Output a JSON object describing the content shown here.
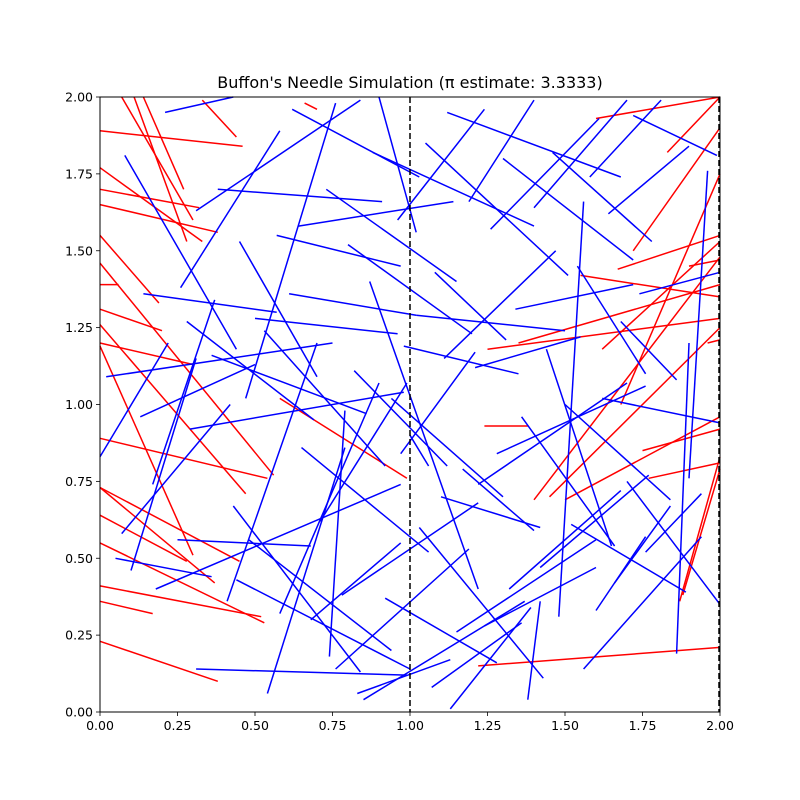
{
  "chart_data": {
    "type": "line",
    "title": "Buffon's Needle Simulation (π estimate: 3.3333)",
    "xlabel": "",
    "ylabel": "",
    "xlim": [
      0,
      2
    ],
    "ylim": [
      0,
      2
    ],
    "grid": false,
    "x_ticks": [
      "0.00",
      "0.25",
      "0.50",
      "0.75",
      "1.00",
      "1.25",
      "1.50",
      "1.75",
      "2.00"
    ],
    "y_ticks": [
      "0.00",
      "0.25",
      "0.50",
      "0.75",
      "1.00",
      "1.25",
      "1.50",
      "1.75",
      "2.00"
    ],
    "floor_lines": [
      1.0,
      2.0
    ],
    "colors": {
      "crossing": "#ff0000",
      "non_crossing": "#0000ff",
      "floor_line": "#000000"
    },
    "series": [
      {
        "color": "#ff0000",
        "segments": [
          [
            0.0,
            0.23,
            0.38,
            0.1
          ],
          [
            0.0,
            0.36,
            0.17,
            0.32
          ],
          [
            0.0,
            0.41,
            0.52,
            0.31
          ],
          [
            0.0,
            0.55,
            0.53,
            0.29
          ],
          [
            0.0,
            0.64,
            0.28,
            0.49
          ],
          [
            0.0,
            0.73,
            0.37,
            0.42
          ],
          [
            0.0,
            0.73,
            0.45,
            0.49
          ],
          [
            0.0,
            0.89,
            0.54,
            0.76
          ],
          [
            0.0,
            1.19,
            0.3,
            0.51
          ],
          [
            0.0,
            1.2,
            0.3,
            1.13
          ],
          [
            0.0,
            1.26,
            0.47,
            0.71
          ],
          [
            0.0,
            1.31,
            0.2,
            1.24
          ],
          [
            0.0,
            1.39,
            0.06,
            1.39
          ],
          [
            0.0,
            1.46,
            0.56,
            0.77
          ],
          [
            0.0,
            1.55,
            0.19,
            1.33
          ],
          [
            0.0,
            1.65,
            0.38,
            1.56
          ],
          [
            0.0,
            1.7,
            0.32,
            1.64
          ],
          [
            0.0,
            1.77,
            0.33,
            1.53
          ],
          [
            0.0,
            1.89,
            0.46,
            1.84
          ],
          [
            0.07,
            2.0,
            0.3,
            1.6
          ],
          [
            0.11,
            2.0,
            0.28,
            1.53
          ],
          [
            0.14,
            2.0,
            0.27,
            1.7
          ],
          [
            0.33,
            1.99,
            0.44,
            1.87
          ],
          [
            0.66,
            1.98,
            0.7,
            1.96
          ],
          [
            0.58,
            1.02,
            0.99,
            0.76
          ],
          [
            1.24,
            0.93,
            1.38,
            0.93
          ],
          [
            1.22,
            0.15,
            2.0,
            0.21
          ],
          [
            1.25,
            1.18,
            2.0,
            1.28
          ],
          [
            1.35,
            1.2,
            2.0,
            1.39
          ],
          [
            1.4,
            0.69,
            2.0,
            1.48
          ],
          [
            1.45,
            0.7,
            2.0,
            1.25
          ],
          [
            1.5,
            0.69,
            2.0,
            0.96
          ],
          [
            1.6,
            1.93,
            2.0,
            2.0
          ],
          [
            1.62,
            1.18,
            2.0,
            1.53
          ],
          [
            1.67,
            1.44,
            2.0,
            1.55
          ],
          [
            1.68,
            1.0,
            2.0,
            1.75
          ],
          [
            1.72,
            1.5,
            2.0,
            1.9
          ],
          [
            1.75,
            0.85,
            2.0,
            0.92
          ],
          [
            1.77,
            0.76,
            2.0,
            0.81
          ],
          [
            1.83,
            1.82,
            2.0,
            2.0
          ],
          [
            1.87,
            0.36,
            2.0,
            0.83
          ],
          [
            1.88,
            0.38,
            2.0,
            0.79
          ],
          [
            1.9,
            1.45,
            2.0,
            1.47
          ],
          [
            1.96,
            1.2,
            2.0,
            1.21
          ],
          [
            1.55,
            1.42,
            2.0,
            1.35
          ]
        ]
      },
      {
        "color": "#0000ff",
        "segments": [
          [
            0.0,
            0.83,
            0.22,
            1.2
          ],
          [
            0.02,
            1.09,
            0.75,
            1.2
          ],
          [
            0.05,
            0.5,
            0.36,
            0.44
          ],
          [
            0.07,
            0.58,
            0.42,
            1.0
          ],
          [
            0.08,
            1.81,
            0.44,
            1.18
          ],
          [
            0.1,
            0.46,
            0.31,
            1.15
          ],
          [
            0.13,
            0.96,
            0.5,
            1.13
          ],
          [
            0.14,
            1.36,
            0.57,
            1.3
          ],
          [
            0.17,
            0.74,
            0.37,
            1.34
          ],
          [
            0.18,
            0.4,
            0.97,
            0.74
          ],
          [
            0.21,
            1.95,
            0.43,
            2.0
          ],
          [
            0.25,
            0.56,
            0.68,
            0.54
          ],
          [
            0.26,
            1.38,
            0.58,
            1.89
          ],
          [
            0.28,
            1.27,
            0.69,
            0.95
          ],
          [
            0.29,
            0.92,
            0.98,
            1.04
          ],
          [
            0.31,
            0.14,
            0.99,
            0.12
          ],
          [
            0.31,
            1.63,
            0.84,
            1.99
          ],
          [
            0.36,
            1.16,
            0.86,
            0.97
          ],
          [
            0.38,
            1.7,
            0.91,
            1.66
          ],
          [
            0.41,
            0.36,
            0.7,
            1.2
          ],
          [
            0.43,
            0.67,
            0.84,
            0.13
          ],
          [
            0.44,
            0.43,
            1.0,
            0.14
          ],
          [
            0.45,
            1.53,
            0.7,
            1.09
          ],
          [
            0.47,
            1.02,
            0.76,
            1.98
          ],
          [
            0.48,
            0.56,
            0.94,
            0.2
          ],
          [
            0.5,
            1.28,
            0.96,
            1.23
          ],
          [
            0.53,
            1.24,
            0.92,
            0.8
          ],
          [
            0.54,
            0.06,
            0.79,
            0.86
          ],
          [
            0.57,
            1.55,
            0.97,
            1.45
          ],
          [
            0.58,
            0.32,
            0.9,
            1.07
          ],
          [
            0.61,
            1.36,
            1.02,
            1.29
          ],
          [
            0.62,
            1.96,
            1.03,
            1.74
          ],
          [
            0.64,
            1.58,
            1.14,
            1.66
          ],
          [
            0.65,
            0.86,
            1.06,
            0.52
          ],
          [
            0.68,
            0.3,
            0.97,
            0.55
          ],
          [
            0.71,
            0.62,
            0.99,
            1.07
          ],
          [
            0.73,
            1.7,
            1.15,
            1.4
          ],
          [
            0.74,
            0.18,
            0.79,
            0.98
          ],
          [
            0.76,
            0.14,
            1.19,
            0.53
          ],
          [
            0.78,
            0.38,
            1.22,
            0.68
          ],
          [
            0.8,
            1.52,
            1.2,
            1.23
          ],
          [
            0.82,
            1.11,
            1.12,
            0.8
          ],
          [
            0.83,
            0.06,
            1.13,
            0.17
          ],
          [
            0.85,
            0.04,
            1.37,
            0.36
          ],
          [
            0.87,
            1.4,
            1.22,
            0.4
          ],
          [
            0.88,
            1.82,
            1.4,
            1.58
          ],
          [
            0.9,
            2.0,
            1.02,
            1.56
          ],
          [
            0.92,
            0.37,
            1.28,
            0.16
          ],
          [
            0.94,
            1.02,
            1.3,
            0.7
          ],
          [
            0.96,
            1.6,
            1.24,
            1.96
          ],
          [
            0.97,
            0.84,
            1.21,
            1.17
          ],
          [
            0.98,
            1.19,
            1.35,
            1.1
          ],
          [
            1.0,
            0.9,
            1.06,
            0.8
          ],
          [
            1.02,
            1.29,
            1.5,
            1.24
          ],
          [
            1.03,
            0.6,
            1.43,
            0.11
          ],
          [
            1.05,
            1.85,
            1.51,
            1.42
          ],
          [
            1.07,
            0.08,
            1.36,
            0.29
          ],
          [
            1.08,
            1.43,
            1.31,
            1.21
          ],
          [
            1.1,
            0.7,
            1.42,
            0.6
          ],
          [
            1.11,
            1.15,
            1.47,
            1.5
          ],
          [
            1.12,
            1.95,
            1.68,
            1.74
          ],
          [
            1.13,
            0.01,
            1.39,
            0.34
          ],
          [
            1.15,
            0.26,
            1.6,
            0.56
          ],
          [
            1.17,
            0.79,
            1.4,
            0.59
          ],
          [
            1.19,
            1.66,
            1.4,
            1.99
          ],
          [
            1.21,
            1.12,
            1.55,
            1.22
          ],
          [
            1.22,
            0.74,
            1.7,
            1.07
          ],
          [
            1.24,
            0.28,
            1.6,
            0.47
          ],
          [
            1.26,
            1.57,
            1.61,
            1.93
          ],
          [
            1.28,
            0.84,
            1.76,
            1.06
          ],
          [
            1.3,
            1.8,
            1.72,
            1.47
          ],
          [
            1.32,
            0.4,
            1.68,
            0.72
          ],
          [
            1.34,
            1.31,
            1.72,
            1.39
          ],
          [
            1.36,
            0.96,
            1.66,
            0.54
          ],
          [
            1.38,
            0.04,
            1.42,
            0.36
          ],
          [
            1.4,
            1.64,
            1.7,
            1.99
          ],
          [
            1.42,
            0.47,
            1.77,
            0.77
          ],
          [
            1.44,
            1.18,
            1.65,
            0.54
          ],
          [
            1.46,
            1.82,
            1.78,
            1.53
          ],
          [
            1.48,
            0.31,
            1.56,
            1.66
          ],
          [
            1.5,
            1.0,
            1.84,
            0.69
          ],
          [
            1.52,
            0.61,
            1.89,
            0.39
          ],
          [
            1.54,
            1.45,
            1.76,
            1.1
          ],
          [
            1.56,
            0.14,
            1.94,
            0.57
          ],
          [
            1.58,
            1.74,
            1.81,
            1.99
          ],
          [
            1.6,
            0.33,
            1.76,
            0.57
          ],
          [
            1.62,
            1.02,
            2.0,
            0.94
          ],
          [
            1.64,
            1.62,
            1.9,
            1.84
          ],
          [
            1.66,
            0.42,
            1.84,
            0.67
          ],
          [
            1.68,
            1.27,
            1.86,
            1.08
          ],
          [
            1.7,
            0.75,
            2.0,
            0.35
          ],
          [
            1.72,
            1.94,
            1.99,
            1.81
          ],
          [
            1.74,
            1.36,
            2.0,
            1.43
          ],
          [
            1.76,
            0.52,
            1.94,
            0.71
          ],
          [
            1.86,
            0.19,
            1.9,
            1.2
          ],
          [
            1.9,
            0.76,
            1.96,
            1.76
          ]
        ]
      }
    ]
  }
}
